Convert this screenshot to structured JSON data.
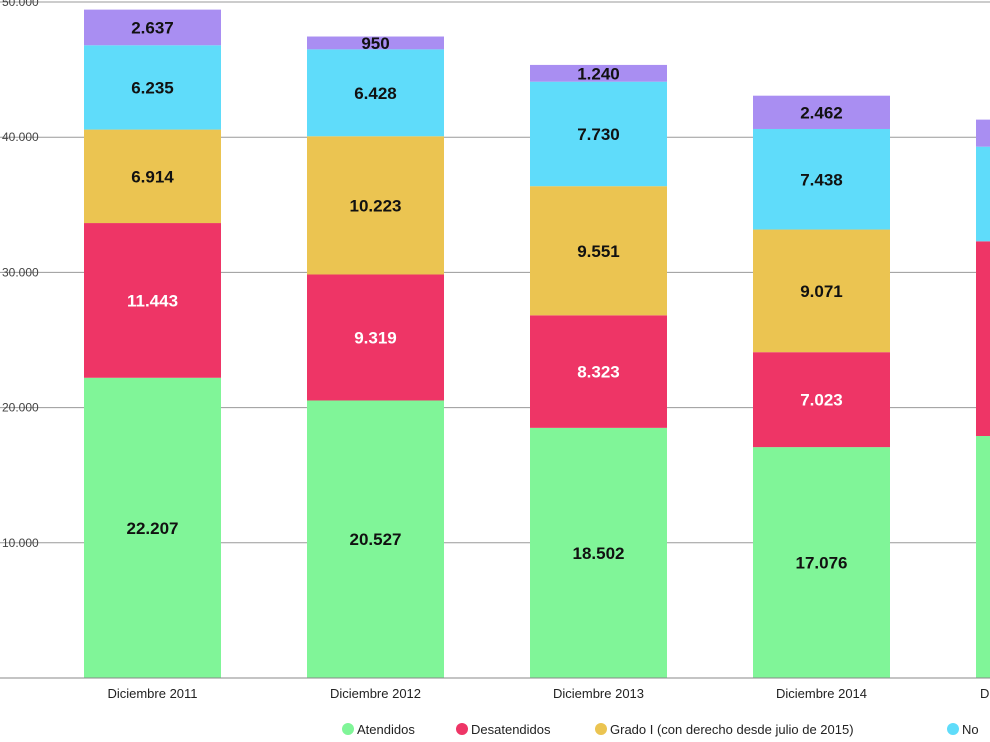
{
  "chart_data": {
    "type": "bar",
    "stacked": true,
    "categories": [
      "Diciembre 2011",
      "Diciembre 2012",
      "Diciembre 2013",
      "Diciembre 2014",
      "D"
    ],
    "y_ticks": [
      "10.000",
      "20.000",
      "30.000",
      "40.000",
      "50.000"
    ],
    "ylim": [
      0,
      50000
    ],
    "grid": true,
    "legend_position": "bottom",
    "series": [
      {
        "name": "Atendidos",
        "color": "#80f598",
        "values": [
          22207,
          20527,
          18502,
          17076,
          17900
        ],
        "labels": [
          "22.207",
          "20.527",
          "18.502",
          "17.076",
          ""
        ]
      },
      {
        "name": "Desatendidos",
        "color": "#ee3566",
        "values": [
          11443,
          9319,
          8323,
          7023,
          14400
        ],
        "labels": [
          "11.443",
          "9.319",
          "8.323",
          "7.023",
          ""
        ]
      },
      {
        "name": "Grado I (con derecho desde julio de 2015)",
        "color": "#ebc451",
        "values": [
          6914,
          10223,
          9551,
          9071,
          0
        ],
        "labels": [
          "6.914",
          "10.223",
          "9.551",
          "9.071",
          ""
        ]
      },
      {
        "name": "No",
        "color": "#5fdcfa",
        "values": [
          6235,
          6428,
          7730,
          7438,
          7000
        ],
        "labels": [
          "6.235",
          "6.428",
          "7.730",
          "7.438",
          ""
        ]
      },
      {
        "name": "",
        "color": "#a98ef2",
        "values": [
          2637,
          950,
          1240,
          2462,
          2000
        ],
        "labels": [
          "2.637",
          "950",
          "1.240",
          "2.462",
          ""
        ]
      }
    ]
  }
}
